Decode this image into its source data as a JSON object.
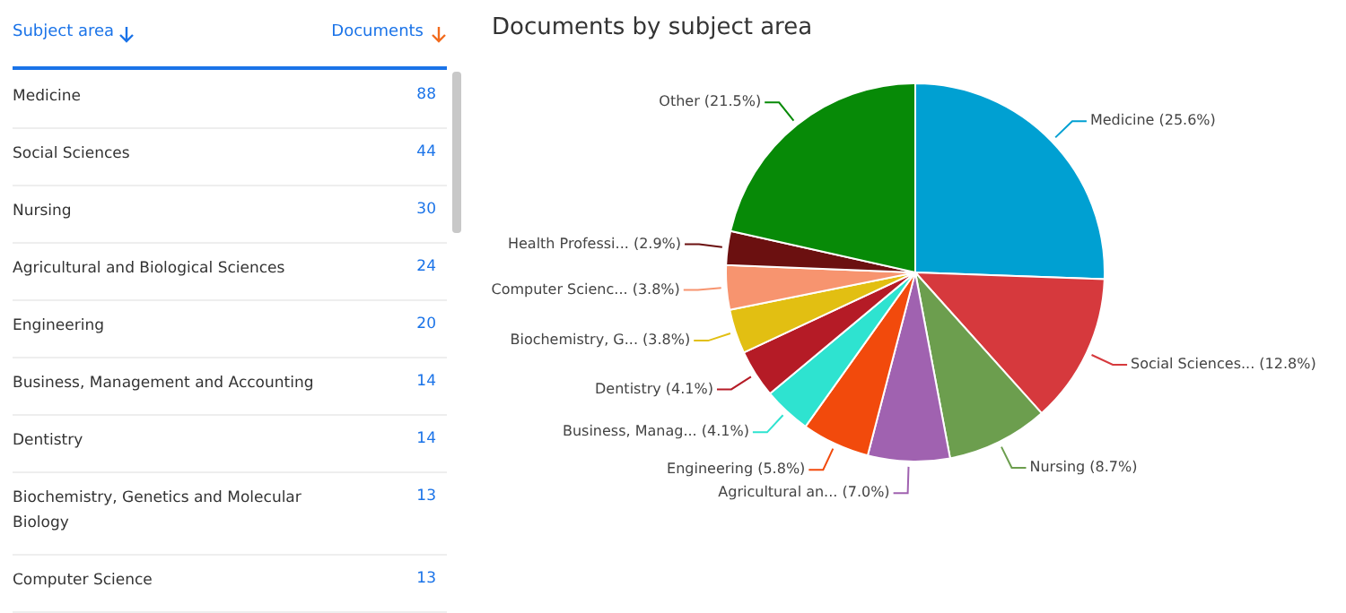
{
  "chart_data": [
    {
      "type": "other",
      "xlabel": "Subject area",
      "ylabel": "Documents",
      "categories": [
        "Medicine",
        "Social Sciences",
        "Nursing",
        "Agricultural and Biological Sciences",
        "Engineering",
        "Business, Management and Accounting",
        "Dentistry",
        "Biochemistry, Genetics and Molecular Biology",
        "Computer Science"
      ],
      "values": [
        88,
        44,
        30,
        24,
        20,
        14,
        14,
        13,
        13
      ],
      "data_labels": true
    },
    {
      "type": "pie",
      "title": "Documents by subject area",
      "categories": [
        "Medicine",
        "Social Sciences...",
        "Nursing",
        "Agricultural an...",
        "Engineering",
        "Business, Manag...",
        "Dentistry",
        "Biochemistry, G...",
        "Computer Scienc...",
        "Health Professi...",
        "Other"
      ],
      "values": [
        25.6,
        12.8,
        8.7,
        7.0,
        5.8,
        4.1,
        4.1,
        3.8,
        3.8,
        2.9,
        21.5
      ],
      "value_labels": [
        "(25.6%)",
        "(12.8%)",
        "(8.7%)",
        "(7.0%)",
        "(5.8%)",
        "(4.1%)",
        "(4.1%)",
        "(3.8%)",
        "(3.8%)",
        "(2.9%)",
        "(21.5%)"
      ],
      "colors": [
        "#00a0d2",
        "#d6393d",
        "#6c9e4e",
        "#a062b0",
        "#f24a0c",
        "#2ee3d0",
        "#b51b26",
        "#e2bf12",
        "#f7946f",
        "#6b1010",
        "#078a07"
      ],
      "legend": false
    }
  ]
}
